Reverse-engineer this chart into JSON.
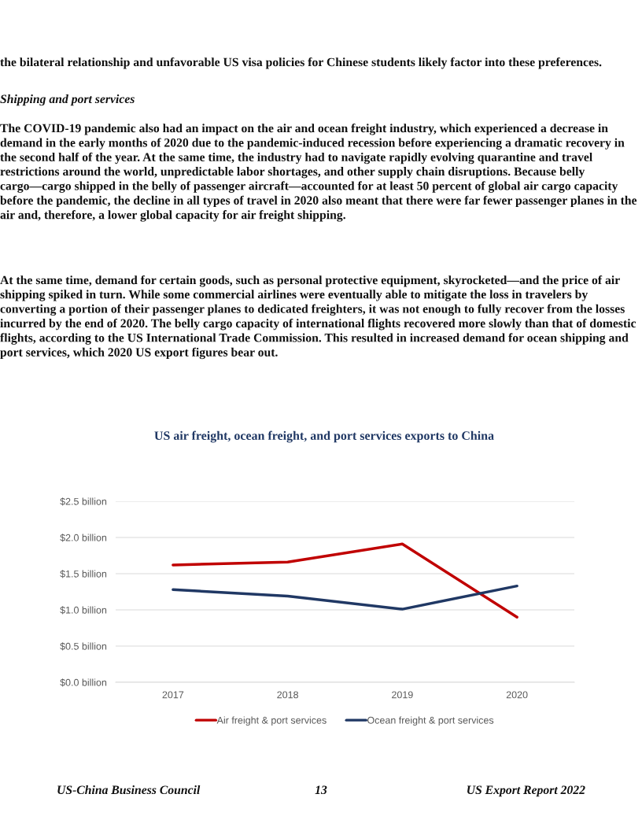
{
  "chart_data": {
    "type": "line",
    "title": "US air freight, ocean freight, and port services exports to China",
    "categories": [
      "2017",
      "2018",
      "2019",
      "2020"
    ],
    "series": [
      {
        "name": "Air freight & port services",
        "color": "#c00000",
        "values": [
          1.62,
          1.66,
          1.91,
          0.9
        ]
      },
      {
        "name": "Ocean freight & port services",
        "color": "#203864",
        "values": [
          1.28,
          1.19,
          1.01,
          1.33
        ]
      }
    ],
    "ylim": [
      0,
      2.5
    ],
    "yticks": [
      {
        "value": 0,
        "label": "$0.0 billion"
      },
      {
        "value": 0.5,
        "label": "$0.5 billion"
      },
      {
        "value": 1,
        "label": "$1.0 billion"
      },
      {
        "value": 1.5,
        "label": "$1.5 billion"
      },
      {
        "value": 2,
        "label": "$2.0 billion"
      },
      {
        "value": 2.5,
        "label": "$2.5 billion"
      }
    ],
    "grid": "y",
    "legend": "bottom",
    "marker": "none",
    "line_style": "solid",
    "annotations": [
      "the bilateral relationship and unfavorable US visa policies for Chinese students likely factor into these preferences.",
      "Shipping and port services",
      "The COVID-19 pandemic also had an impact on the air and ocean freight industry, which experienced a decrease in demand in the early months of 2020 due to the pandemic-induced recession before experiencing a dramatic recovery in the second half of the year. At the same time, the industry had to navigate rapidly evolving quarantine and travel restrictions around the world, unpredictable labor shortages, and other supply chain disruptions. Because belly cargo—cargo shipped in the belly of passenger aircraft—accounted for at least 50 percent of global air cargo capacity before the pandemic, the decline in all types of travel in 2020 also meant that there were far fewer passenger planes in the air and, therefore, a lower global capacity for air freight shipping.",
      "At the same time, demand for certain goods, such as personal protective equipment, skyrocketed—and the price of air shipping spiked in turn. While some commercial airlines were eventually able to mitigate the loss in travelers by converting a portion of their passenger planes to dedicated freighters, it was not enough to fully recover from the losses incurred by the end of 2020. The belly cargo capacity of international flights recovered more slowly than that of domestic flights, according to the US International Trade Commission. This resulted in increased demand for ocean shipping and port services, which 2020 US export figures bear out.",
      "US-China Business Council",
      "13",
      "US Export Report 2022"
    ]
  }
}
